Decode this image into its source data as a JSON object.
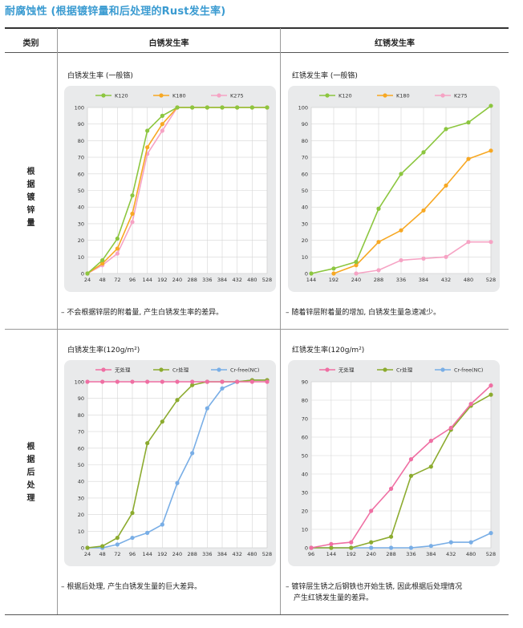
{
  "title": "耐腐蚀性 (根据镀锌量和后处理的Rust发生率)",
  "table": {
    "header": {
      "category": "类别",
      "white": "白锈发生率",
      "red": "红锈发生率"
    },
    "rows": [
      {
        "label": [
          "根",
          "据",
          "镀",
          "锌",
          "量"
        ]
      },
      {
        "label": [
          "根",
          "据",
          "后",
          "处",
          "理"
        ]
      }
    ]
  },
  "notes": {
    "tl": "– 不会根据锌层的附着量, 产生白锈发生率的差异。",
    "tr": "– 随着锌层附着量的增加, 白锈发生量急速减少。",
    "bl": "– 根据后处理, 产生白锈发生量的巨大差异。",
    "br1": "– 镀锌层生锈之后钢铁也开始生锈, 因此根据后处理情况",
    "br2": "产生红锈发生量的差异。"
  },
  "chart_data": [
    {
      "type": "line",
      "title": "白锈发生率 (一般铬)",
      "x": [
        24,
        48,
        72,
        96,
        144,
        192,
        240,
        288,
        336,
        384,
        432,
        480,
        528
      ],
      "ylim": [
        0,
        100
      ],
      "yticks": [
        0,
        10,
        20,
        30,
        40,
        50,
        60,
        70,
        80,
        90,
        100
      ],
      "grid": true,
      "legend": "top",
      "series": [
        {
          "name": "K120",
          "color": "#8cc63f",
          "values": [
            0,
            8,
            21,
            47,
            86,
            95,
            100,
            100,
            100,
            100,
            100,
            100,
            100
          ]
        },
        {
          "name": "K180",
          "color": "#f7a823",
          "values": [
            0,
            6,
            15,
            36,
            76,
            90,
            100,
            100,
            100,
            100,
            100,
            100,
            100
          ]
        },
        {
          "name": "K275",
          "color": "#f6a3c4",
          "values": [
            0,
            5,
            12,
            31,
            72,
            86,
            100,
            100,
            100,
            100,
            100,
            100,
            100
          ]
        }
      ]
    },
    {
      "type": "line",
      "title": "红锈发生率 (一般铬)",
      "x": [
        144,
        192,
        240,
        288,
        336,
        384,
        432,
        480,
        528
      ],
      "ylim": [
        0,
        100
      ],
      "yticks": [
        0,
        10,
        20,
        30,
        40,
        50,
        60,
        70,
        80,
        90,
        100
      ],
      "grid": true,
      "legend": "top",
      "series": [
        {
          "name": "K120",
          "color": "#8cc63f",
          "values": [
            0,
            3,
            7,
            39,
            60,
            73,
            87,
            91,
            101
          ]
        },
        {
          "name": "K180",
          "color": "#f7a823",
          "values": [
            null,
            0,
            5,
            19,
            26,
            38,
            53,
            69,
            74
          ]
        },
        {
          "name": "K275",
          "color": "#f6a3c4",
          "values": [
            null,
            null,
            0,
            2,
            8,
            9,
            10,
            19,
            19
          ]
        }
      ]
    },
    {
      "type": "line",
      "title": "白锈发生率(120g/m²)",
      "x": [
        24,
        48,
        72,
        96,
        144,
        192,
        240,
        288,
        336,
        384,
        432,
        480,
        528
      ],
      "ylim": [
        0,
        100
      ],
      "yticks": [
        0,
        10,
        20,
        30,
        40,
        50,
        60,
        70,
        80,
        90,
        100
      ],
      "grid": true,
      "legend": "top",
      "series": [
        {
          "name": "无处理",
          "color": "#ef6fa3",
          "values": [
            100,
            100,
            100,
            100,
            100,
            100,
            100,
            100,
            100,
            100,
            100,
            100,
            100
          ]
        },
        {
          "name": "Cr处理",
          "color": "#8cab2f",
          "values": [
            0,
            1,
            6,
            21,
            63,
            76,
            89,
            98,
            100,
            100,
            100,
            101,
            101
          ]
        },
        {
          "name": "Cr-free(NC)",
          "color": "#79aee6",
          "values": [
            0,
            0,
            2,
            6,
            9,
            14,
            39,
            57,
            84,
            96,
            100,
            101,
            101
          ]
        }
      ]
    },
    {
      "type": "line",
      "title": "红锈发生率(120g/m²)",
      "x": [
        96,
        144,
        192,
        240,
        288,
        336,
        384,
        432,
        480,
        528
      ],
      "ylim": [
        0,
        90
      ],
      "yticks": [
        0,
        10,
        20,
        30,
        40,
        50,
        60,
        70,
        80,
        90
      ],
      "grid": true,
      "legend": "top",
      "series": [
        {
          "name": "无处理",
          "color": "#ef6fa3",
          "values": [
            0,
            2,
            3,
            20,
            32,
            48,
            58,
            65,
            78,
            88
          ]
        },
        {
          "name": "Cr处理",
          "color": "#8cab2f",
          "values": [
            0,
            0,
            0,
            3,
            6,
            39,
            44,
            64,
            77,
            83
          ]
        },
        {
          "name": "Cr-free(NC)",
          "color": "#79aee6",
          "values": [
            0,
            0,
            0,
            0,
            0,
            0,
            1,
            3,
            3,
            8
          ]
        }
      ]
    }
  ]
}
